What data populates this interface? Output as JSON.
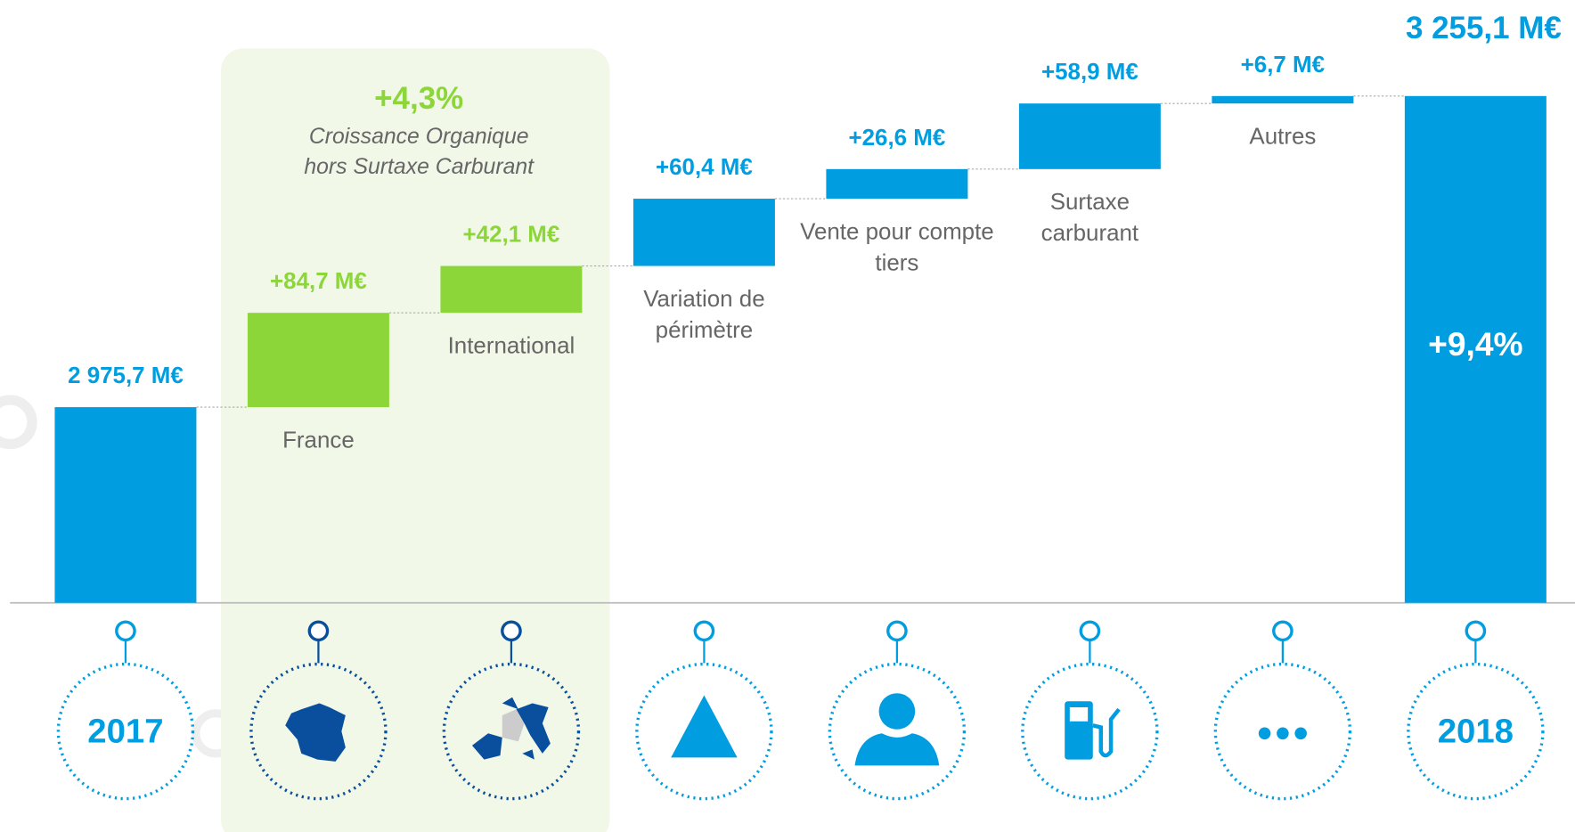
{
  "chart_data": {
    "type": "waterfall",
    "categories": [
      "2017",
      "France",
      "International",
      "Variation de périmètre",
      "Vente pour compte tiers",
      "Surtaxe carburant",
      "Autres",
      "2018"
    ],
    "values": [
      2975.7,
      84.7,
      42.1,
      60.4,
      26.6,
      58.9,
      6.7,
      3255.1
    ],
    "value_labels": [
      "2 975,7 M€",
      "+84,7 M€",
      "+42,1 M€",
      "+60,4 M€",
      "+26,6 M€",
      "+58,9 M€",
      "+6,7 M€",
      "3 255,1 M€"
    ],
    "colors": [
      "#009ee0",
      "#8cd63a",
      "#8cd63a",
      "#009ee0",
      "#009ee0",
      "#009ee0",
      "#009ee0",
      "#009ee0"
    ],
    "ylim": [
      2800,
      3260
    ],
    "annotations": [
      "+4,3%",
      "Croissance Organique",
      "hors Surtaxe Carburant",
      "+9,4%"
    ]
  }
}
